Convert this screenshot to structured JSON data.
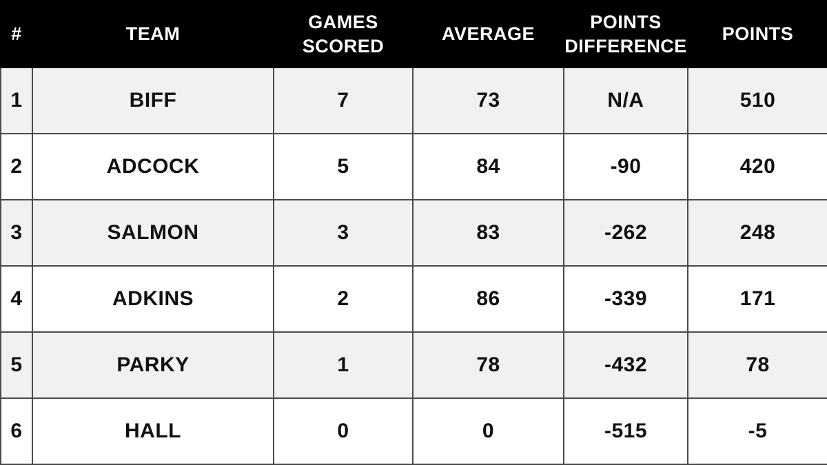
{
  "table": {
    "columns": [
      {
        "key": "rank",
        "label": "#"
      },
      {
        "key": "team",
        "label": "TEAM"
      },
      {
        "key": "games_scored",
        "label": "GAMES\nSCORED"
      },
      {
        "key": "average",
        "label": "AVERAGE"
      },
      {
        "key": "points_difference",
        "label": "POINTS\nDIFFERENCE"
      },
      {
        "key": "points",
        "label": "POINTS"
      }
    ],
    "rows": [
      {
        "rank": "1",
        "team": "BIFF",
        "games_scored": "7",
        "average": "73",
        "points_difference": "N/A",
        "points": "510"
      },
      {
        "rank": "2",
        "team": "ADCOCK",
        "games_scored": "5",
        "average": "84",
        "points_difference": "-90",
        "points": "420"
      },
      {
        "rank": "3",
        "team": "SALMON",
        "games_scored": "3",
        "average": "83",
        "points_difference": "-262",
        "points": "248"
      },
      {
        "rank": "4",
        "team": "ADKINS",
        "games_scored": "2",
        "average": "86",
        "points_difference": "-339",
        "points": "171"
      },
      {
        "rank": "5",
        "team": "PARKY",
        "games_scored": "1",
        "average": "78",
        "points_difference": "-432",
        "points": "78"
      },
      {
        "rank": "6",
        "team": "HALL",
        "games_scored": "0",
        "average": "0",
        "points_difference": "-515",
        "points": "-5"
      }
    ]
  },
  "colors": {
    "header_background": "#000000",
    "header_text": "#ffffff",
    "row_stripe": "#f1f1f1",
    "row_plain": "#ffffff",
    "border": "#4a4a4a",
    "body_text": "#111111"
  },
  "chart_data": {
    "type": "table",
    "title": "",
    "columns": [
      "#",
      "TEAM",
      "GAMES SCORED",
      "AVERAGE",
      "POINTS DIFFERENCE",
      "POINTS"
    ],
    "rows": [
      [
        "1",
        "BIFF",
        "7",
        "73",
        "N/A",
        "510"
      ],
      [
        "2",
        "ADCOCK",
        "5",
        "84",
        "-90",
        "420"
      ],
      [
        "3",
        "SALMON",
        "3",
        "83",
        "-262",
        "248"
      ],
      [
        "4",
        "ADKINS",
        "2",
        "86",
        "-339",
        "171"
      ],
      [
        "5",
        "PARKY",
        "1",
        "78",
        "-432",
        "78"
      ],
      [
        "6",
        "HALL",
        "0",
        "0",
        "-515",
        "-5"
      ]
    ]
  }
}
